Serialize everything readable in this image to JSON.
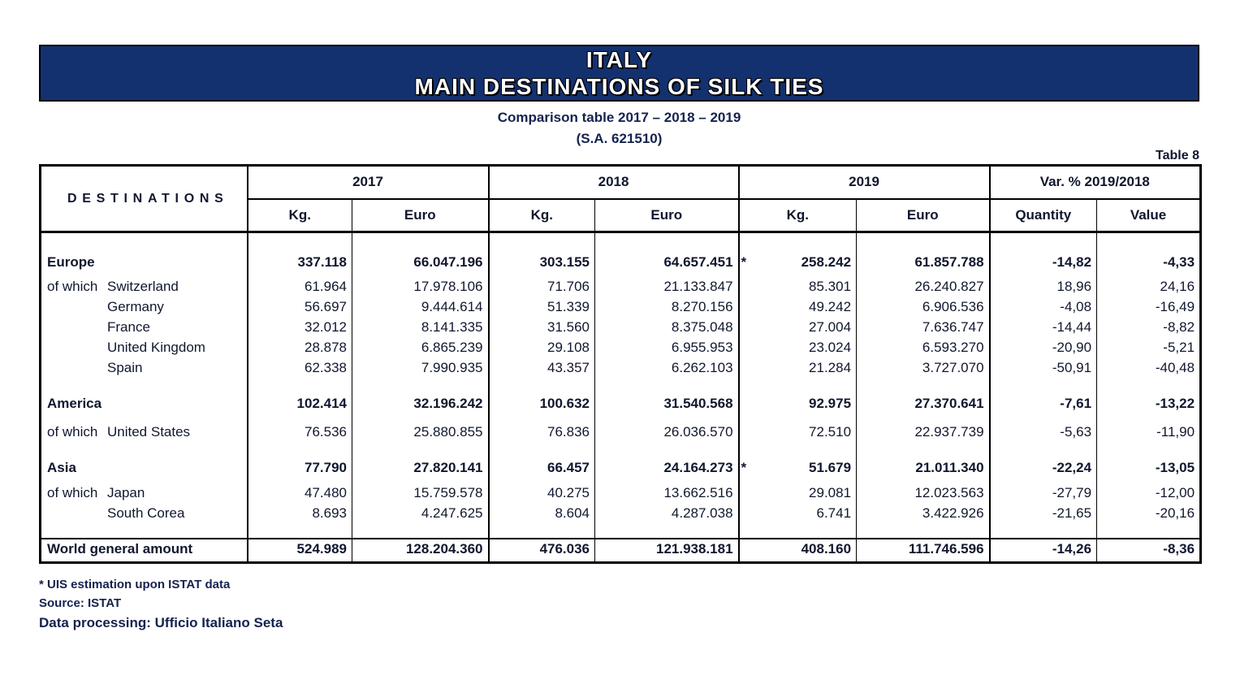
{
  "title": {
    "line1": "ITALY",
    "line2": "MAIN DESTINATIONS OF SILK TIES"
  },
  "subtitle": "Comparison table 2017 – 2018 – 2019",
  "sa_code": "(S.A. 621510)",
  "table_label": "Table 8",
  "colors": {
    "banner_bg": "#14316f",
    "banner_text": "#ffffff",
    "ink": "#10172e",
    "border": "#000000"
  },
  "table": {
    "destinations_header": "DESTINATIONS",
    "year_groups": [
      {
        "label": "2017",
        "sub": [
          "Kg.",
          "Euro"
        ]
      },
      {
        "label": "2018",
        "sub": [
          "Kg.",
          "Euro"
        ]
      },
      {
        "label": "2019",
        "sub": [
          "Kg.",
          "Euro"
        ]
      },
      {
        "label": "Var. %  2019/2018",
        "sub": [
          "Quantity",
          "Value"
        ]
      }
    ],
    "rows": [
      {
        "id": "europe",
        "prefix": "",
        "indent": false,
        "label": "Europe",
        "bold": true,
        "star": true,
        "values": [
          "337.118",
          "66.047.196",
          "303.155",
          "64.657.451",
          "258.242",
          "61.857.788",
          "-14,82",
          "-4,33"
        ]
      },
      {
        "id": "switzerland",
        "prefix": "of which",
        "indent": false,
        "label": "Switzerland",
        "bold": false,
        "star": false,
        "values": [
          "61.964",
          "17.978.106",
          "71.706",
          "21.133.847",
          "85.301",
          "26.240.827",
          "18,96",
          "24,16"
        ]
      },
      {
        "id": "germany",
        "prefix": "",
        "indent": true,
        "label": "Germany",
        "bold": false,
        "star": false,
        "values": [
          "56.697",
          "9.444.614",
          "51.339",
          "8.270.156",
          "49.242",
          "6.906.536",
          "-4,08",
          "-16,49"
        ]
      },
      {
        "id": "france",
        "prefix": "",
        "indent": true,
        "label": "France",
        "bold": false,
        "star": false,
        "values": [
          "32.012",
          "8.141.335",
          "31.560",
          "8.375.048",
          "27.004",
          "7.636.747",
          "-14,44",
          "-8,82"
        ]
      },
      {
        "id": "uk",
        "prefix": "",
        "indent": true,
        "label": "United Kingdom",
        "bold": false,
        "star": false,
        "values": [
          "28.878",
          "6.865.239",
          "29.108",
          "6.955.953",
          "23.024",
          "6.593.270",
          "-20,90",
          "-5,21"
        ]
      },
      {
        "id": "spain",
        "prefix": "",
        "indent": true,
        "label": "Spain",
        "bold": false,
        "star": false,
        "values": [
          "62.338",
          "7.990.935",
          "43.357",
          "6.262.103",
          "21.284",
          "3.727.070",
          "-50,91",
          "-40,48"
        ]
      },
      {
        "id": "america",
        "prefix": "",
        "indent": false,
        "label": "America",
        "bold": true,
        "star": false,
        "values": [
          "102.414",
          "32.196.242",
          "100.632",
          "31.540.568",
          "92.975",
          "27.370.641",
          "-7,61",
          "-13,22"
        ]
      },
      {
        "id": "us",
        "prefix": "of which",
        "indent": false,
        "label": "United States",
        "bold": false,
        "star": false,
        "values": [
          "76.536",
          "25.880.855",
          "76.836",
          "26.036.570",
          "72.510",
          "22.937.739",
          "-5,63",
          "-11,90"
        ]
      },
      {
        "id": "asia",
        "prefix": "",
        "indent": false,
        "label": "Asia",
        "bold": true,
        "star": true,
        "values": [
          "77.790",
          "27.820.141",
          "66.457",
          "24.164.273",
          "51.679",
          "21.011.340",
          "-22,24",
          "-13,05"
        ]
      },
      {
        "id": "japan",
        "prefix": "of which",
        "indent": false,
        "label": "Japan",
        "bold": false,
        "star": false,
        "values": [
          "47.480",
          "15.759.578",
          "40.275",
          "13.662.516",
          "29.081",
          "12.023.563",
          "-27,79",
          "-12,00"
        ]
      },
      {
        "id": "corea",
        "prefix": "",
        "indent": true,
        "label": "South Corea",
        "bold": false,
        "star": false,
        "values": [
          "8.693",
          "4.247.625",
          "8.604",
          "4.287.038",
          "6.741",
          "3.422.926",
          "-21,65",
          "-20,16"
        ]
      }
    ],
    "total_row": {
      "label": "World general amount",
      "values": [
        "524.989",
        "128.204.360",
        "476.036",
        "121.938.181",
        "408.160",
        "111.746.596",
        "-14,26",
        "-8,36"
      ]
    },
    "star_symbol": "*"
  },
  "footnotes": [
    "* UIS estimation upon ISTAT data",
    "Source: ISTAT",
    "Data processing: Ufficio Italiano Seta"
  ]
}
